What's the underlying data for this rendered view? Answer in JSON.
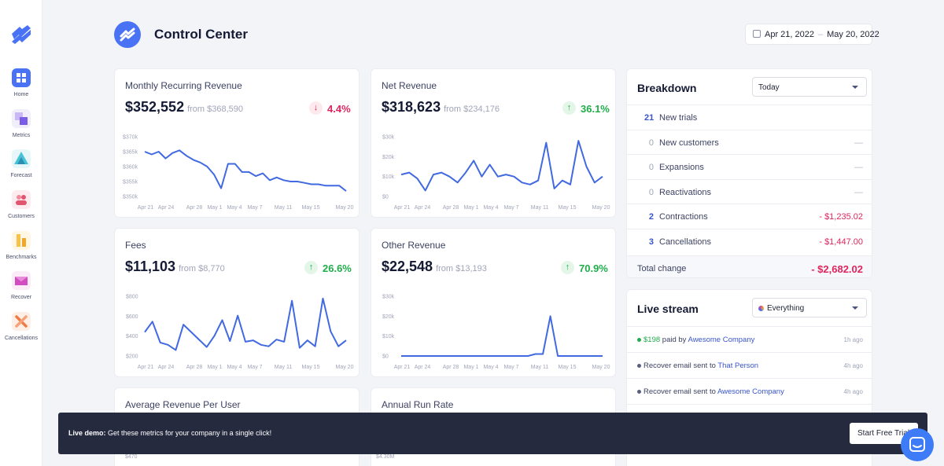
{
  "app": {
    "title": "Control Center"
  },
  "date_range": {
    "start": "Apr 21, 2022",
    "separator": "–",
    "end": "May 20, 2022"
  },
  "sidebar": {
    "items": [
      {
        "label": "Home",
        "icon": "home-icon",
        "active": true
      },
      {
        "label": "Metrics",
        "icon": "metrics-icon"
      },
      {
        "label": "Forecast",
        "icon": "forecast-icon"
      },
      {
        "label": "Customers",
        "icon": "customers-icon"
      },
      {
        "label": "Benchmarks",
        "icon": "benchmarks-icon"
      },
      {
        "label": "Recover",
        "icon": "recover-icon"
      },
      {
        "label": "Cancellations",
        "icon": "cancellations-icon"
      }
    ]
  },
  "colors": {
    "accent": "#4a72f5",
    "line": "#4169e1",
    "negative": "#e0245e",
    "positive": "#1fae4a"
  },
  "cards": [
    {
      "title": "Monthly Recurring Revenue",
      "value": "$352,552",
      "from": "from $368,590",
      "change": "4.4%",
      "direction": "down"
    },
    {
      "title": "Net Revenue",
      "value": "$318,623",
      "from": "from $234,176",
      "change": "36.1%",
      "direction": "up"
    },
    {
      "title": "Fees",
      "value": "$11,103",
      "from": "from $8,770",
      "change": "26.6%",
      "direction": "up"
    },
    {
      "title": "Other Revenue",
      "value": "$22,548",
      "from": "from $13,193",
      "change": "70.9%",
      "direction": "up"
    },
    {
      "title": "Average Revenue Per User",
      "value": "",
      "from": "",
      "change": "",
      "direction": ""
    },
    {
      "title": "Annual Run Rate",
      "value": "",
      "from": "",
      "change": "",
      "direction": ""
    }
  ],
  "chart_data": [
    {
      "type": "line",
      "title": "Monthly Recurring Revenue",
      "x_ticks": [
        "Apr 21",
        "Apr 24",
        "Apr 28",
        "May 1",
        "May 4",
        "May 7",
        "May 11",
        "May 15",
        "May 20"
      ],
      "y_ticks": [
        "$370k",
        "$365k",
        "$360k",
        "$355k",
        "$350k"
      ],
      "ylim": [
        350,
        372
      ],
      "values": [
        366.5,
        365.5,
        366.5,
        364,
        366,
        367,
        365,
        363.5,
        362.5,
        361,
        358,
        353,
        362,
        362,
        359,
        359,
        357.5,
        358.5,
        356,
        357,
        356,
        355.5,
        355.5,
        355,
        354.5,
        354.5,
        354,
        354,
        354,
        352
      ]
    },
    {
      "type": "line",
      "title": "Net Revenue",
      "x_ticks": [
        "Apr 21",
        "Apr 24",
        "Apr 28",
        "May 1",
        "May 4",
        "May 7",
        "May 11",
        "May 15",
        "May 20"
      ],
      "y_ticks": [
        "$30k",
        "$20k",
        "$10k",
        "$0"
      ],
      "ylim": [
        0,
        30
      ],
      "values": [
        11,
        12,
        9,
        3,
        11,
        12,
        10,
        7,
        12,
        18,
        10,
        16,
        10,
        11,
        10,
        7,
        6,
        8,
        27,
        4,
        8,
        6,
        28,
        15,
        7,
        10
      ]
    },
    {
      "type": "line",
      "title": "Fees",
      "x_ticks": [
        "Apr 21",
        "Apr 24",
        "Apr 28",
        "May 1",
        "May 4",
        "May 7",
        "May 11",
        "May 15",
        "May 20"
      ],
      "y_ticks": [
        "$800",
        "$600",
        "$400",
        "$200"
      ],
      "ylim": [
        100,
        900
      ],
      "values": [
        420,
        560,
        280,
        250,
        180,
        520,
        420,
        320,
        220,
        370,
        580,
        300,
        640,
        290,
        310,
        250,
        230,
        320,
        290,
        840,
        210,
        310,
        230,
        870,
        430,
        230,
        310
      ]
    },
    {
      "type": "line",
      "title": "Other Revenue",
      "x_ticks": [
        "Apr 21",
        "Apr 24",
        "Apr 28",
        "May 1",
        "May 4",
        "May 7",
        "May 11",
        "May 15",
        "May 20"
      ],
      "y_ticks": [
        "$30k",
        "$20k",
        "$10k",
        "$0"
      ],
      "ylim": [
        0,
        30
      ],
      "values": [
        0,
        0,
        0,
        0,
        0,
        0,
        0,
        0,
        0,
        0,
        0,
        0,
        0,
        0,
        0,
        0,
        0,
        0,
        1,
        1,
        20,
        0,
        0,
        0,
        0,
        0,
        0,
        0
      ]
    },
    {
      "type": "line",
      "title": "Average Revenue Per User",
      "y_ticks": [
        "$470"
      ],
      "values": []
    },
    {
      "type": "line",
      "title": "Annual Run Rate",
      "y_ticks": [
        "$4.30M"
      ],
      "values": []
    }
  ],
  "breakdown": {
    "title": "Breakdown",
    "filter": "Today",
    "rows": [
      {
        "count": "21",
        "label": "New trials",
        "amount": ""
      },
      {
        "count": "0",
        "label": "New customers",
        "amount": "—"
      },
      {
        "count": "0",
        "label": "Expansions",
        "amount": "—"
      },
      {
        "count": "0",
        "label": "Reactivations",
        "amount": "—"
      },
      {
        "count": "2",
        "label": "Contractions",
        "amount": "- $1,235.02"
      },
      {
        "count": "3",
        "label": "Cancellations",
        "amount": "- $1,447.00"
      }
    ],
    "total_label": "Total change",
    "total_amount": "- $2,682.02"
  },
  "live_stream": {
    "title": "Live stream",
    "filter": "Everything",
    "events": [
      {
        "pre": "",
        "money": "$198",
        "mid": " paid by ",
        "link": "Awesome Company",
        "time": "1h ago",
        "dot": "#1fae4a"
      },
      {
        "pre": "Recover email sent to ",
        "money": "",
        "mid": "",
        "link": "That Person",
        "time": "4h ago",
        "dot": "#5a5f80"
      },
      {
        "pre": "Recover email sent to ",
        "money": "",
        "mid": "",
        "link": "Awesome Company",
        "time": "4h ago",
        "dot": "#5a5f80"
      }
    ]
  },
  "banner": {
    "title": "Live demo:",
    "message": " Get these metrics for your company in a single click!",
    "button": "Start Free Trial"
  }
}
